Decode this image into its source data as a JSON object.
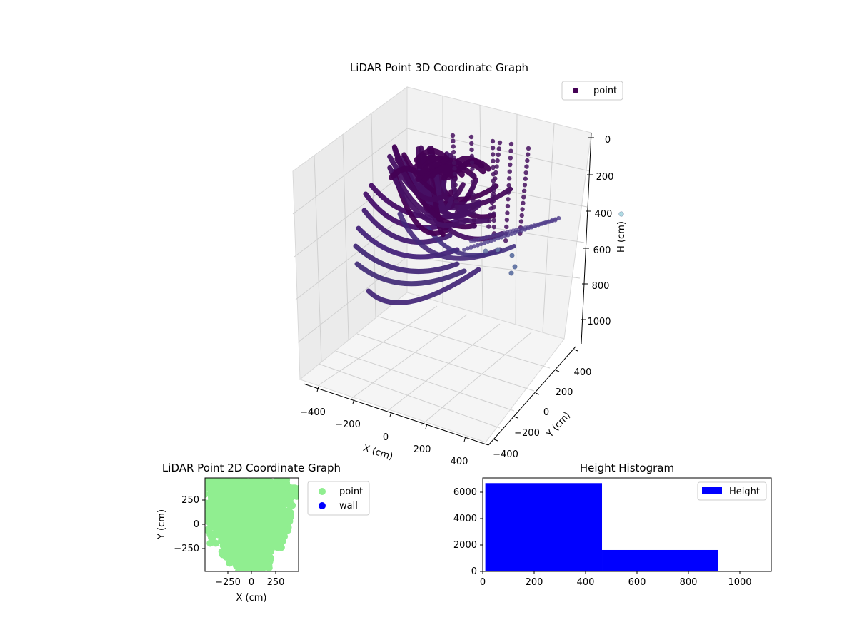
{
  "charts": {
    "scatter3d": {
      "title": "LiDAR Point 3D Coordinate Graph",
      "xlabel": "X (cm)",
      "ylabel": "Y (cm)",
      "zlabel": "H (cm)",
      "xticks": [
        "−400",
        "−200",
        "0",
        "200",
        "400"
      ],
      "yticks": [
        "−400",
        "−200",
        "0",
        "200",
        "400"
      ],
      "zticks": [
        "0",
        "200",
        "400",
        "600",
        "800",
        "1000"
      ],
      "legend": [
        "point"
      ]
    },
    "scatter2d": {
      "title": "LiDAR Point 2D Coordinate Graph",
      "xlabel": "X (cm)",
      "ylabel": "Y (cm)",
      "xticks": [
        "−250",
        "0",
        "250"
      ],
      "yticks": [
        "250",
        "0",
        "−250"
      ],
      "legend": [
        "point",
        "wall"
      ]
    },
    "histogram": {
      "title": "Height Histogram",
      "xticks": [
        "0",
        "200",
        "400",
        "600",
        "800",
        "1000"
      ],
      "yticks": [
        "0",
        "2000",
        "4000",
        "6000"
      ],
      "legend": [
        "Height"
      ]
    }
  },
  "chart_data": [
    {
      "type": "scatter",
      "title": "LiDAR Point 3D Coordinate Graph",
      "projection": "3d",
      "xlabel": "X (cm)",
      "ylabel": "Y (cm)",
      "zlabel": "H (cm)",
      "xlim": [
        -450,
        450
      ],
      "ylim": [
        -450,
        450
      ],
      "zlim": [
        1100,
        0
      ],
      "series": [
        {
          "name": "point",
          "description": "dense cluster of curved scan arcs",
          "x_range": [
            -420,
            320
          ],
          "y_range": [
            -350,
            450
          ],
          "h_range": [
            0,
            1000
          ],
          "color": "#440154"
        }
      ],
      "legend": [
        "point"
      ],
      "legend_position": "top-right",
      "grid": true
    },
    {
      "type": "scatter",
      "title": "LiDAR Point 2D Coordinate Graph",
      "xlabel": "X (cm)",
      "ylabel": "Y (cm)",
      "xlim": [
        -480,
        480
      ],
      "ylim": [
        -480,
        480
      ],
      "series": [
        {
          "name": "point",
          "color": "#90ee90"
        },
        {
          "name": "wall",
          "color": "#0000ff"
        }
      ],
      "legend": [
        "point",
        "wall"
      ],
      "legend_position": "outside-right",
      "grid": false
    },
    {
      "type": "bar",
      "title": "Height Histogram",
      "bins": [
        {
          "start": 10,
          "end": 463,
          "count": 6800
        },
        {
          "start": 463,
          "end": 913,
          "count": 1650
        }
      ],
      "xlim": [
        0,
        1120
      ],
      "ylim": [
        0,
        7200
      ],
      "series": [
        {
          "name": "Height",
          "color": "#0000ff"
        }
      ],
      "legend": [
        "Height"
      ],
      "legend_position": "top-right",
      "grid": false
    }
  ]
}
